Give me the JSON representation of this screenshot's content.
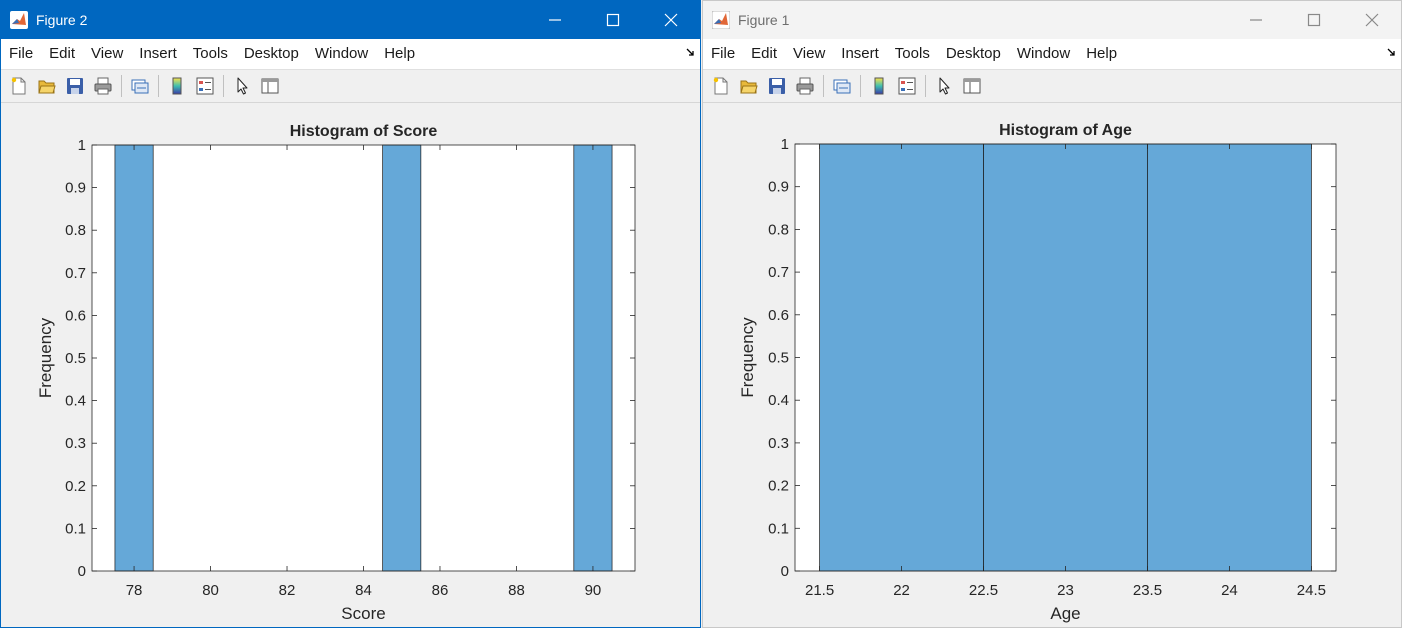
{
  "windows": [
    {
      "id": "win2",
      "title": "Figure 2",
      "active": true,
      "menu": [
        "File",
        "Edit",
        "View",
        "Insert",
        "Tools",
        "Desktop",
        "Window",
        "Help"
      ]
    },
    {
      "id": "win1",
      "title": "Figure 1",
      "active": false,
      "menu": [
        "File",
        "Edit",
        "View",
        "Insert",
        "Tools",
        "Desktop",
        "Window",
        "Help"
      ]
    }
  ],
  "toolbar_icons": [
    "new-figure-icon",
    "open-file-icon",
    "save-icon",
    "print-icon",
    "link-plot-icon",
    "colorbar-icon",
    "legend-icon",
    "pointer-icon",
    "property-inspector-icon"
  ],
  "colors": {
    "bar": "#65a8d8",
    "active_title": "#0067c0"
  },
  "chart_data": [
    {
      "type": "bar",
      "title": "Histogram of Score",
      "xlabel": "Score",
      "ylabel": "Frequency",
      "xlim": [
        76.9,
        91.1
      ],
      "ylim": [
        0,
        1
      ],
      "xticks": [
        "78",
        "80",
        "82",
        "84",
        "86",
        "88",
        "90"
      ],
      "yticks": [
        "0",
        "0.1",
        "0.2",
        "0.3",
        "0.4",
        "0.5",
        "0.6",
        "0.7",
        "0.8",
        "0.9",
        "1"
      ],
      "bins": [
        {
          "from": 77.5,
          "to": 78.5,
          "value": 1
        },
        {
          "from": 84.5,
          "to": 85.5,
          "value": 1
        },
        {
          "from": 89.5,
          "to": 90.5,
          "value": 1
        }
      ]
    },
    {
      "type": "bar",
      "title": "Histogram of Age",
      "xlabel": "Age",
      "ylabel": "Frequency",
      "xlim": [
        21.35,
        24.65
      ],
      "ylim": [
        0,
        1
      ],
      "xticks": [
        "21.5",
        "22",
        "22.5",
        "23",
        "23.5",
        "24",
        "24.5"
      ],
      "yticks": [
        "0",
        "0.1",
        "0.2",
        "0.3",
        "0.4",
        "0.5",
        "0.6",
        "0.7",
        "0.8",
        "0.9",
        "1"
      ],
      "bins": [
        {
          "from": 21.5,
          "to": 22.5,
          "value": 1
        },
        {
          "from": 22.5,
          "to": 23.5,
          "value": 1
        },
        {
          "from": 23.5,
          "to": 24.5,
          "value": 1
        }
      ]
    }
  ]
}
